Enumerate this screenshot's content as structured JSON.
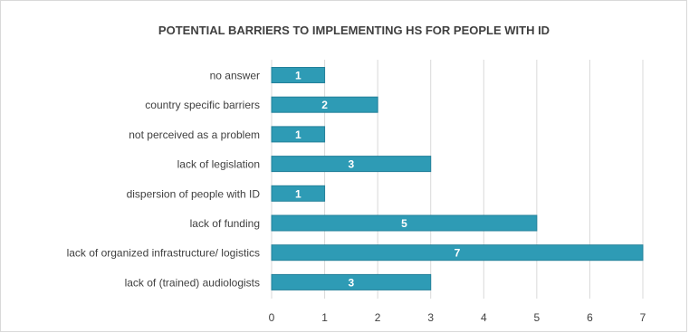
{
  "chart_data": {
    "type": "bar",
    "orientation": "horizontal",
    "title": "POTENTIAL BARRIERS TO IMPLEMENTING HS FOR PEOPLE WITH ID",
    "xlabel": "",
    "ylabel": "",
    "categories": [
      "no answer",
      "country specific barriers",
      "not perceived as a problem",
      "lack of legislation",
      "dispersion of people with ID",
      "lack of funding",
      "lack of organized infrastructure/ logistics",
      "lack of (trained) audiologists"
    ],
    "values": [
      1,
      2,
      1,
      3,
      1,
      5,
      7,
      3
    ],
    "xlim": [
      0,
      7
    ],
    "xticks": [
      "0",
      "1",
      "2",
      "3",
      "4",
      "5",
      "6",
      "7"
    ],
    "grid": "vertical",
    "legend": "none",
    "data_labels": true,
    "colors": {
      "bar": "#2e9bb5",
      "bar_edge": "#23809a",
      "grid": "#d9d9d9",
      "text": "#404040"
    }
  }
}
